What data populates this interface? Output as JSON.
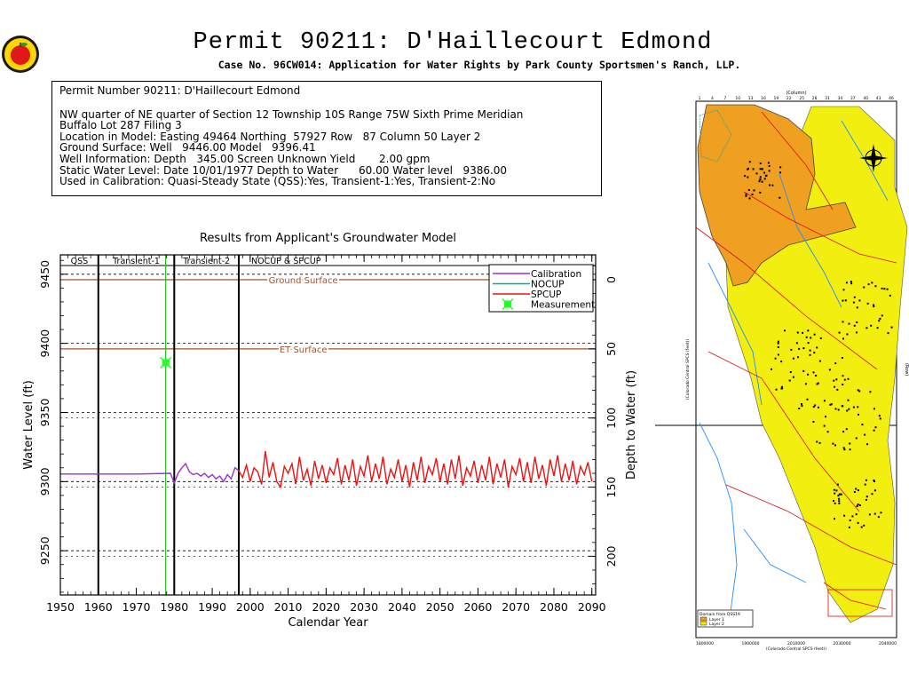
{
  "header": {
    "title": "Permit 90211:  D'Haillecourt Edmond",
    "subtitle": "Case No. 96CW014: Application for Water Rights by Park County Sportsmen's Ranch, LLP."
  },
  "info_box": {
    "heading": "Permit Number 90211: D'Haillecourt Edmond",
    "lines": [
      "NW quarter of NE quarter of Section 12 Township 10S Range 75W Sixth Prime Meridian",
      "Buffalo Lot 287 Filing 3",
      "Location in Model: Easting 49464 Northing  57927 Row   87 Column 50 Layer 2",
      "Ground Surface: Well   9446.00 Model   9396.41",
      "Well Information: Depth   345.00 Screen Unknown Yield       2.00 gpm",
      "Static Water Level: Date 10/01/1977 Depth to Water      60.00 Water level   9386.00",
      "Used in Calibration: Quasi-Steady State (QSS):Yes, Transient-1:Yes, Transient-2:No"
    ]
  },
  "chart_data": {
    "type": "line",
    "title": "Results from Applicant's Groundwater Model",
    "xlabel": "Calendar Year",
    "ylabel": "Water Level (ft)",
    "y2label": "Depth to Water (ft)",
    "xlim": [
      1950,
      2091
    ],
    "ylim": [
      9218,
      9464
    ],
    "xticks": [
      1950,
      1960,
      1970,
      1980,
      1990,
      2000,
      2010,
      2020,
      2030,
      2040,
      2050,
      2060,
      2070,
      2080,
      2090
    ],
    "yticks": [
      9250,
      9300,
      9350,
      9400,
      9450
    ],
    "y2ticks": [
      0,
      50,
      100,
      150,
      200
    ],
    "y2_reference_level": 9446,
    "grid": "dashed at major ticks",
    "periods": [
      {
        "label": "QSS",
        "start": 1950,
        "end": 1960
      },
      {
        "label": "Transient-1",
        "start": 1960,
        "end": 1980
      },
      {
        "label": "Transient-2",
        "start": 1980,
        "end": 1997
      },
      {
        "label": "NOCUP & SPCUP",
        "start": 1997,
        "end": 2091
      }
    ],
    "reference_lines": [
      {
        "label": "Ground Surface",
        "y": 9446,
        "color": "#a0522d"
      },
      {
        "label": "ET Surface",
        "y": 9396,
        "color": "#a0522d"
      }
    ],
    "measurement_year_line": {
      "x": 1977.75,
      "color": "#22bb22"
    },
    "legend": {
      "placement": "top-right",
      "entries": [
        {
          "name": "Calibration",
          "color": "#9932cc"
        },
        {
          "name": "NOCUP",
          "color": "#00aaaa"
        },
        {
          "name": "SPCUP",
          "color": "#ee1111"
        },
        {
          "name": "Measurement",
          "color": "#22ff22"
        }
      ]
    },
    "series": [
      {
        "name": "Calibration",
        "color": "#9932cc",
        "x": [
          1950,
          1960,
          1970,
          1979,
          1980,
          1981,
          1982,
          1983,
          1984,
          1985,
          1986,
          1987,
          1988,
          1989,
          1990,
          1991,
          1992,
          1993,
          1994,
          1995,
          1996,
          1997
        ],
        "y": [
          9305.5,
          9305.5,
          9305.5,
          9306,
          9299,
          9306,
          9310,
          9313,
          9307,
          9305,
          9306,
          9304,
          9306,
          9303,
          9305,
          9302,
          9304,
          9300,
          9305,
          9302,
          9310,
          9308
        ]
      },
      {
        "name": "SPCUP",
        "color": "#ee1111",
        "x": [
          1997,
          1998,
          1999,
          2000,
          2001,
          2002,
          2003,
          2004,
          2005,
          2006,
          2007,
          2008,
          2009,
          2010,
          2011,
          2012,
          2013,
          2014,
          2015,
          2016,
          2017,
          2018,
          2019,
          2020,
          2021,
          2022,
          2023,
          2024,
          2025,
          2026,
          2027,
          2028,
          2029,
          2030,
          2031,
          2032,
          2033,
          2034,
          2035,
          2036,
          2037,
          2038,
          2039,
          2040,
          2041,
          2042,
          2043,
          2044,
          2045,
          2046,
          2047,
          2048,
          2049,
          2050,
          2051,
          2052,
          2053,
          2054,
          2055,
          2056,
          2057,
          2058,
          2059,
          2060,
          2061,
          2062,
          2063,
          2064,
          2065,
          2066,
          2067,
          2068,
          2069,
          2070,
          2071,
          2072,
          2073,
          2074,
          2075,
          2076,
          2077,
          2078,
          2079,
          2080,
          2081,
          2082,
          2083,
          2084,
          2085,
          2086,
          2087,
          2088,
          2089,
          2090
        ],
        "y": [
          9308,
          9303,
          9312,
          9300,
          9310,
          9307,
          9298,
          9322,
          9303,
          9314,
          9300,
          9296,
          9311,
          9306,
          9313,
          9298,
          9318,
          9301,
          9309,
          9297,
          9315,
          9302,
          9312,
          9299,
          9310,
          9305,
          9317,
          9298,
          9312,
          9301,
          9316,
          9297,
          9311,
          9304,
          9319,
          9300,
          9313,
          9302,
          9318,
          9298,
          9309,
          9303,
          9316,
          9300,
          9312,
          9296,
          9314,
          9301,
          9318,
          9299,
          9311,
          9305,
          9317,
          9300,
          9313,
          9298,
          9316,
          9302,
          9319,
          9297,
          9310,
          9304,
          9315,
          9299,
          9312,
          9301,
          9318,
          9298,
          9313,
          9303,
          9316,
          9296,
          9311,
          9305,
          9317,
          9300,
          9314,
          9299,
          9318,
          9302,
          9312,
          9297,
          9316,
          9304,
          9319,
          9300,
          9313,
          9301,
          9315,
          9298,
          9311,
          9305,
          9314,
          9300
        ]
      }
    ],
    "measurement": {
      "name": "Measurement",
      "x": 1977.75,
      "y": 9386,
      "color": "#22ff22"
    }
  },
  "map": {
    "legend_title": "Domain from QSS19",
    "legend_entries": [
      {
        "label": "Layer 1",
        "color": "#f0a020"
      },
      {
        "label": "Layer 2",
        "color": "#f2ee10"
      }
    ],
    "top_axis_label": "(Column)",
    "right_axis_label": "(Row)",
    "left_axis_label": "(Colorado Central SPCS (feet))",
    "bottom_axis_label": "(Colorado Central SPCS (feet))",
    "top_ticks": [
      "1",
      "4",
      "7",
      "10",
      "13",
      "16",
      "19",
      "22",
      "25",
      "28",
      "31",
      "34",
      "37",
      "40",
      "43",
      "46"
    ],
    "bottom_ticks": [
      "1800000",
      "1900000",
      "2010000",
      "2030000",
      "2040000"
    ],
    "colors": {
      "layer1": "#f0a020",
      "layer2": "#f2ee10",
      "rivers": "#1e90ff",
      "roads": "#dd1111",
      "wells": "#000000"
    }
  }
}
